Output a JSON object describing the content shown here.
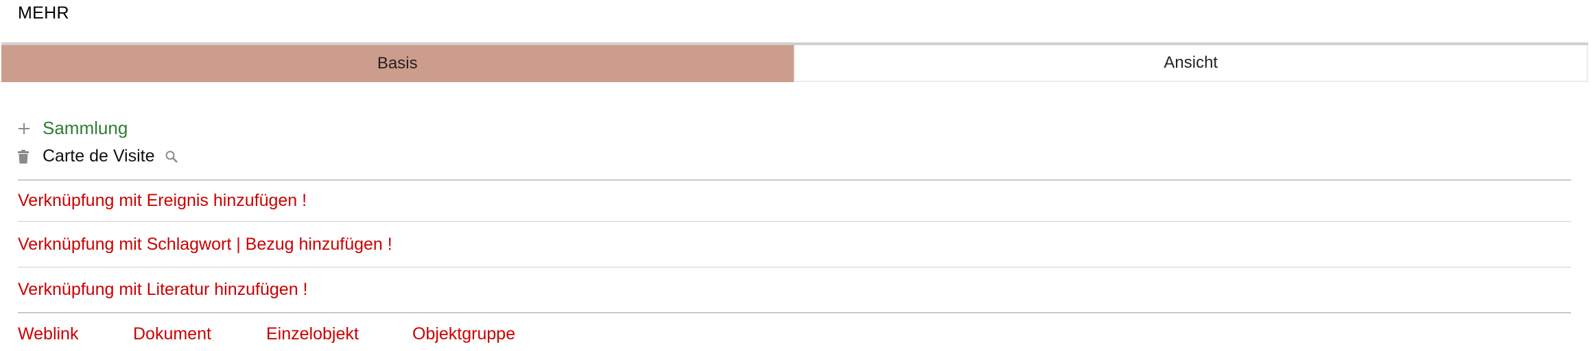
{
  "section_title": "MEHR",
  "tabs": [
    {
      "label": "Basis",
      "active": true
    },
    {
      "label": "Ansicht",
      "active": false
    }
  ],
  "collection": {
    "add_label": "Sammlung",
    "item_label": "Carte de Visite",
    "icons": {
      "add": "plus-icon",
      "delete": "trash-icon",
      "search": "search-icon"
    }
  },
  "links": {
    "event": "Verknüpfung mit Ereignis hinzufügen !",
    "keyword": "Verknüpfung mit Schlagwort | Bezug hinzufügen !",
    "literature": "Verknüpfung mit Literatur hinzufügen !"
  },
  "bottom_links": [
    "Weblink",
    "Dokument",
    "Einzelobjekt",
    "Objektgruppe"
  ],
  "colors": {
    "active_tab": "#cc9d8c",
    "link_red": "#cc0000",
    "green": "#2e7d32"
  }
}
